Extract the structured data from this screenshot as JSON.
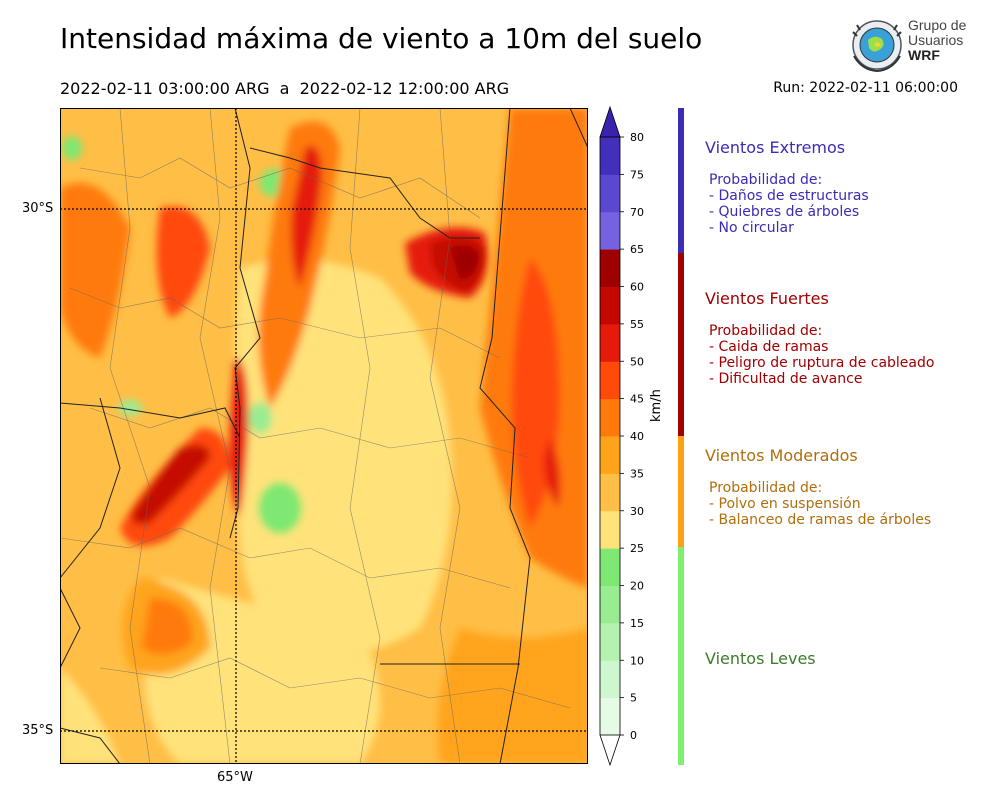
{
  "header": {
    "title": "Intensidad máxima de viento a 10m del suelo",
    "period": "2022-02-11 03:00:00 ARG  a  2022-02-12 12:00:00 ARG",
    "run": "Run: 2022-02-11 06:00:00"
  },
  "logo": {
    "line1": "Grupo de",
    "line2": "Usuarios",
    "line3": "WRF"
  },
  "map": {
    "lat_labels": [
      "30°S",
      "35°S"
    ],
    "lon_labels": [
      "65°W"
    ]
  },
  "colorbar": {
    "unit": "km/h",
    "ticks": [
      "0",
      "5",
      "10",
      "15",
      "20",
      "25",
      "30",
      "35",
      "40",
      "45",
      "50",
      "55",
      "60",
      "65",
      "70",
      "75",
      "80"
    ],
    "colors": [
      "#e6fbe6",
      "#cff7cf",
      "#b5f2b0",
      "#9aec92",
      "#7ee872",
      "#ffe27a",
      "#ffbe46",
      "#ffa41a",
      "#ff7a0a",
      "#ff4a0a",
      "#e51a0a",
      "#c40800",
      "#9e0000",
      "#7562e0",
      "#5a48d0",
      "#4230bc"
    ],
    "top_color": "#3a22ae"
  },
  "legend": [
    {
      "title": "Vientos Extremos",
      "color": "#3b2bb5",
      "lines": [
        "Probabilidad de:",
        "- Daños de estructuras",
        "- Quiebres de árboles",
        "- No circular"
      ]
    },
    {
      "title": "Vientos Fuertes",
      "color": "#a00000",
      "lines": [
        "Probabilidad de:",
        "- Caida de ramas",
        "- Peligro de ruptura de cableado",
        "- Dificultad de avance"
      ]
    },
    {
      "title": "Vientos Moderados",
      "color": "#b06e0c",
      "bar_color": "#ffa010",
      "lines": [
        "Probabilidad de:",
        "- Polvo en suspensión",
        "- Balanceo de ramas de árboles"
      ]
    },
    {
      "title": "Vientos Leves",
      "color": "#3a7d2a",
      "bar_color": "#7ef070",
      "lines": []
    }
  ]
}
